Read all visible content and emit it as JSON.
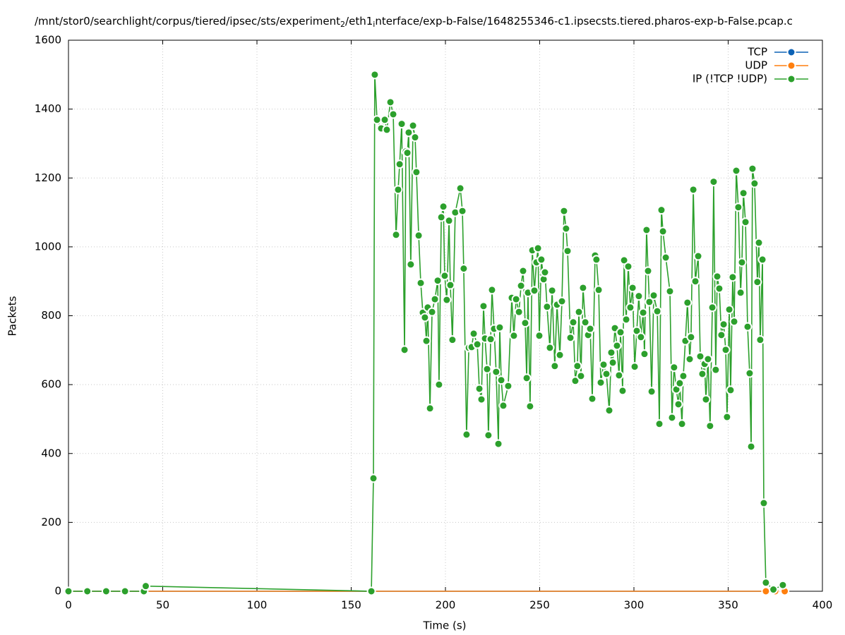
{
  "chart_data": {
    "type": "line",
    "title_parts": [
      "/mnt/stor0/searchlight/corpus/tiered/ipsec/sts/experiment",
      "2",
      "/eth1",
      "i",
      "nterface/exp-b-False/1648255346-c1.ipsecsts.tiered.pharos-exp-b-False.pcap.c"
    ],
    "x_label": "Time (s)",
    "y_label": "Packets",
    "xlim": [
      0,
      400
    ],
    "xticks": [
      0,
      50,
      100,
      150,
      200,
      250,
      300,
      350,
      400
    ],
    "ylim": [
      0,
      1600
    ],
    "yticks": [
      0,
      200,
      400,
      600,
      800,
      1000,
      1200,
      1400,
      1600
    ],
    "grid": true,
    "legend": "top-right",
    "series": [
      {
        "name": "TCP",
        "color": "#0d62b5",
        "x": [
          0,
          10,
          20,
          30,
          40,
          370,
          375,
          380
        ],
        "values": [
          0,
          0,
          0,
          0,
          0,
          0,
          0,
          0
        ]
      },
      {
        "name": "UDP",
        "color": "#ff7f0e",
        "x": [
          0,
          10,
          20,
          30,
          40,
          370,
          375,
          380
        ],
        "values": [
          0,
          0,
          0,
          0,
          0,
          0,
          0,
          0
        ]
      },
      {
        "name": "IP (!TCP  !UDP)",
        "color": "#2ca02c",
        "x": [
          0,
          10,
          20,
          30,
          40,
          41,
          160.7,
          161.8,
          162.5,
          163.7,
          165.9,
          167.8,
          168.9,
          170.8,
          172.3,
          173.8,
          174.9,
          175.7,
          176.8,
          178.3,
          179,
          179.8,
          180.5,
          181.6,
          182.8,
          183.9,
          184.6,
          185.8,
          186.9,
          188,
          189.1,
          189.9,
          190.6,
          191.8,
          192.9,
          194.4,
          195.9,
          196.6,
          197.8,
          198.9,
          199.6,
          200.7,
          201.9,
          202.6,
          203.7,
          205.2,
          207.9,
          209,
          209.7,
          211.2,
          212.4,
          213.9,
          215,
          216.9,
          218,
          219.1,
          220.2,
          221,
          222.1,
          222.8,
          224,
          224.7,
          225.8,
          226.9,
          228.1,
          228.8,
          229.6,
          230.7,
          233.3,
          235.2,
          236.3,
          237.5,
          239,
          240.1,
          241.2,
          242.3,
          243.1,
          243.8,
          244.9,
          246.1,
          247.2,
          248.3,
          249.1,
          249.8,
          250.9,
          252.1,
          252.8,
          253.9,
          255.4,
          256.6,
          258,
          259.2,
          260.7,
          261.8,
          262.9,
          264,
          264.8,
          266.3,
          267.8,
          268.9,
          270,
          270.8,
          271.9,
          273,
          274.2,
          275.7,
          276.8,
          277.9,
          279.4,
          280.1,
          281.3,
          282.4,
          283.9,
          285.4,
          286.9,
          288,
          288.8,
          289.9,
          291,
          292.1,
          292.9,
          294,
          294.8,
          295.9,
          297,
          298.1,
          299.3,
          300.4,
          301.5,
          302.6,
          303.7,
          304.9,
          305.6,
          306.7,
          307.5,
          308.2,
          309.4,
          310.5,
          312.4,
          313.5,
          314.6,
          315.4,
          316.9,
          319.1,
          320.2,
          321.3,
          322.5,
          323.6,
          324.3,
          325.5,
          326.2,
          327.3,
          328.4,
          329.6,
          330.3,
          331.5,
          332.6,
          334.1,
          335.2,
          336.3,
          337.5,
          338.2,
          339.3,
          340.4,
          341.6,
          342.3,
          343.4,
          344.2,
          345.3,
          346.4,
          347.6,
          348.7,
          349.4,
          350.6,
          351.3,
          352.4,
          353.2,
          354.3,
          355.4,
          356.6,
          357.3,
          358.1,
          359.2,
          360.3,
          361.4,
          362.2,
          362.9,
          364,
          365.5,
          366.3,
          367,
          368.2,
          368.9,
          370,
          374,
          379
        ],
        "values": [
          0,
          0,
          0,
          0,
          0,
          15,
          0,
          328,
          1500,
          1369,
          1344,
          1369,
          1340,
          1420,
          1385,
          1035,
          1166,
          1240,
          1357,
          701,
          1277,
          1273,
          1332,
          949,
          1352,
          1318,
          1217,
          1033,
          895,
          809,
          795,
          727,
          824,
          531,
          811,
          848,
          902,
          600,
          1086,
          1117,
          916,
          846,
          1076,
          889,
          730,
          1100,
          1170,
          1104,
          937,
          455,
          707,
          709,
          748,
          717,
          588,
          557,
          828,
          734,
          645,
          453,
          732,
          875,
          762,
          637,
          428,
          766,
          613,
          539,
          596,
          852,
          742,
          848,
          811,
          887,
          930,
          779,
          619,
          867,
          537,
          990,
          873,
          955,
          996,
          742,
          963,
          906,
          926,
          826,
          707,
          873,
          654,
          832,
          686,
          842,
          1104,
          1053,
          988,
          736,
          781,
          611,
          654,
          811,
          625,
          881,
          781,
          744,
          762,
          559,
          975,
          963,
          875,
          606,
          658,
          631,
          525,
          693,
          664,
          764,
          713,
          627,
          752,
          582,
          961,
          789,
          943,
          824,
          881,
          652,
          756,
          857,
          738,
          809,
          689,
          1049,
          930,
          840,
          580,
          859,
          813,
          486,
          1107,
          1045,
          969,
          871,
          504,
          650,
          586,
          543,
          604,
          486,
          625,
          727,
          838,
          674,
          738,
          1166,
          900,
          973,
          682,
          631,
          660,
          557,
          674,
          480,
          824,
          1189,
          643,
          914,
          879,
          744,
          775,
          701,
          506,
          818,
          584,
          912,
          783,
          1221,
          1115,
          867,
          955,
          1156,
          1072,
          768,
          633,
          420,
          1227,
          1184,
          898,
          1012,
          730,
          963,
          256,
          25,
          5,
          18
        ]
      }
    ]
  }
}
